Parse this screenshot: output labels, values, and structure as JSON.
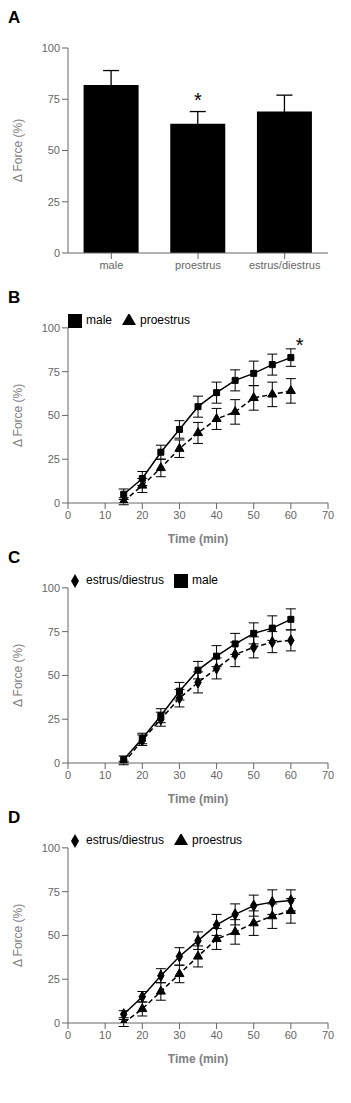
{
  "chart_data": [
    {
      "type": "bar",
      "title": "A",
      "categories": [
        "male",
        "proestrus",
        "estrus/diestrus"
      ],
      "values": [
        82,
        63,
        69
      ],
      "errors": [
        7,
        6,
        8
      ],
      "color": "#000000",
      "ylabel": "Δ Force (%)",
      "ylim": [
        0,
        100
      ],
      "yticks": [
        0,
        25,
        50,
        75,
        100
      ],
      "grid": false,
      "annotations": [
        {
          "text": "*",
          "category": "proestrus"
        }
      ]
    },
    {
      "type": "line",
      "title": "B",
      "xlabel": "Time (min)",
      "ylabel": "Δ Force (%)",
      "x": [
        15,
        20,
        25,
        30,
        35,
        40,
        45,
        50,
        55,
        60
      ],
      "series": [
        {
          "name": "male",
          "color": "#000000",
          "marker": "square",
          "line_style": "solid",
          "values": [
            5,
            14,
            29,
            42,
            55,
            63,
            70,
            74,
            79,
            83
          ],
          "errors": [
            3,
            4,
            4,
            5,
            6,
            6,
            6,
            7,
            6,
            5
          ]
        },
        {
          "name": "proestrus",
          "color": "#000000",
          "marker": "triangle",
          "line_style": "dashed",
          "values": [
            1,
            10,
            20,
            31,
            40,
            48,
            52,
            60,
            62,
            64
          ],
          "errors": [
            2,
            4,
            5,
            5,
            6,
            6,
            7,
            7,
            7,
            7
          ]
        }
      ],
      "xlim": [
        0,
        70
      ],
      "xticks": [
        0,
        10,
        20,
        30,
        40,
        50,
        60,
        70
      ],
      "ylim": [
        0,
        100
      ],
      "yticks": [
        0,
        25,
        50,
        75,
        100
      ],
      "grid": false,
      "legend": "upper left",
      "annotations": [
        {
          "text": "*",
          "x": 60,
          "y": 90
        }
      ]
    },
    {
      "type": "line",
      "title": "C",
      "xlabel": "Time (min)",
      "ylabel": "Δ Force (%)",
      "x": [
        15,
        20,
        25,
        30,
        35,
        40,
        45,
        50,
        55,
        60
      ],
      "series": [
        {
          "name": "male",
          "color": "#000000",
          "marker": "square",
          "line_style": "solid",
          "values": [
            2,
            14,
            27,
            41,
            53,
            61,
            68,
            74,
            77,
            82
          ],
          "errors": [
            2,
            3,
            4,
            5,
            5,
            6,
            6,
            6,
            7,
            6
          ]
        },
        {
          "name": "estrus/diestrus",
          "color": "#000000",
          "marker": "diamond",
          "line_style": "dashed",
          "values": [
            0,
            13,
            25,
            37,
            46,
            54,
            62,
            66,
            69,
            70
          ],
          "errors": [
            1,
            3,
            4,
            5,
            6,
            6,
            7,
            6,
            6,
            6
          ]
        }
      ],
      "xlim": [
        0,
        70
      ],
      "xticks": [
        0,
        10,
        20,
        30,
        40,
        50,
        60,
        70
      ],
      "ylim": [
        0,
        100
      ],
      "yticks": [
        0,
        25,
        50,
        75,
        100
      ],
      "grid": false,
      "legend": "upper left"
    },
    {
      "type": "line",
      "title": "D",
      "xlabel": "Time (min)",
      "ylabel": "Δ Force (%)",
      "x": [
        15,
        20,
        25,
        30,
        35,
        40,
        45,
        50,
        55,
        60
      ],
      "series": [
        {
          "name": "estrus/diestrus",
          "color": "#000000",
          "marker": "diamond",
          "line_style": "solid",
          "values": [
            5,
            15,
            27,
            38,
            47,
            56,
            62,
            67,
            69,
            70
          ],
          "errors": [
            2,
            3,
            4,
            5,
            5,
            6,
            6,
            6,
            7,
            6
          ]
        },
        {
          "name": "proestrus",
          "color": "#000000",
          "marker": "triangle",
          "line_style": "dashed",
          "values": [
            0,
            8,
            18,
            28,
            38,
            48,
            52,
            57,
            61,
            64
          ],
          "errors": [
            2,
            4,
            5,
            5,
            6,
            6,
            7,
            7,
            7,
            7
          ]
        }
      ],
      "xlim": [
        0,
        70
      ],
      "xticks": [
        0,
        10,
        20,
        30,
        40,
        50,
        60,
        70
      ],
      "ylim": [
        0,
        100
      ],
      "yticks": [
        0,
        25,
        50,
        75,
        100
      ],
      "grid": false,
      "legend": "upper left"
    }
  ]
}
